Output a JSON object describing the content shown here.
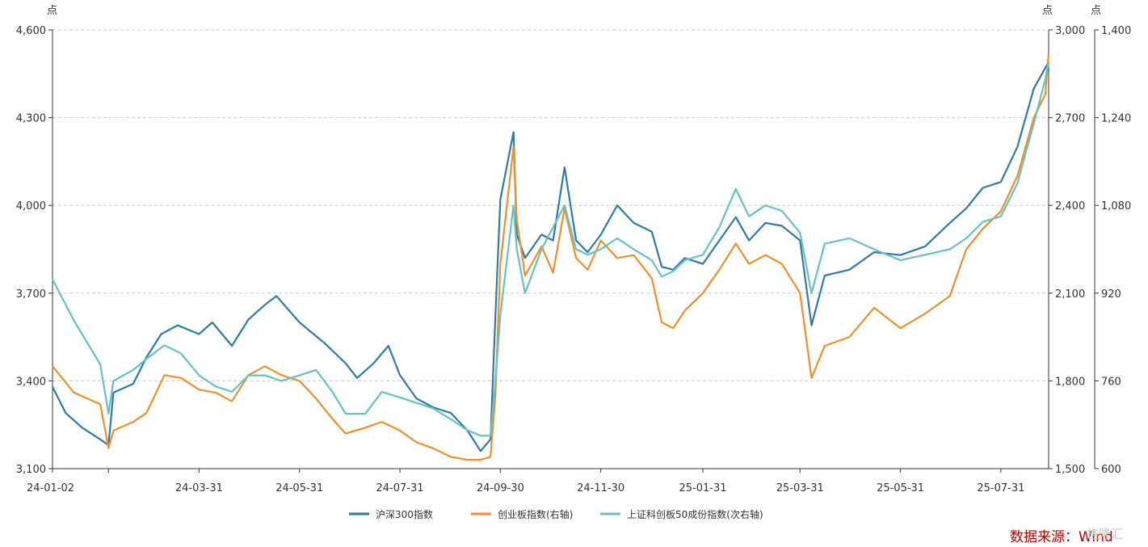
{
  "chart_data": {
    "type": "line",
    "units": {
      "left": "点",
      "right": "点",
      "right2": "点"
    },
    "x_labels": [
      "24-01-02",
      "24-03-31",
      "24-05-31",
      "24-07-31",
      "24-09-30",
      "24-11-30",
      "25-01-31",
      "25-03-31",
      "25-05-31",
      "25-07-31"
    ],
    "axes": {
      "left": {
        "min": 3100,
        "max": 4600,
        "ticks": [
          "3,100",
          "3,400",
          "3,700",
          "4,000",
          "4,300",
          "4,600"
        ]
      },
      "right": {
        "min": 1500,
        "max": 3000,
        "ticks": [
          "1,500",
          "1,800",
          "2,100",
          "2,400",
          "2,700",
          "3,000"
        ]
      },
      "right2": {
        "min": 600,
        "max": 1400,
        "ticks": [
          "600",
          "760",
          "920",
          "1,080",
          "1,240",
          "1,400"
        ]
      }
    },
    "grid": true,
    "legend_position": "bottom",
    "series": [
      {
        "name": "沪深300指数",
        "axis": "left",
        "color": "#2e7ba6",
        "points": [
          [
            "24-01-02",
            3380
          ],
          [
            "24-01-10",
            3290
          ],
          [
            "24-01-20",
            3240
          ],
          [
            "24-01-31",
            3200
          ],
          [
            "24-02-05",
            3180
          ],
          [
            "24-02-08",
            3360
          ],
          [
            "24-02-20",
            3390
          ],
          [
            "24-02-28",
            3480
          ],
          [
            "24-03-08",
            3560
          ],
          [
            "24-03-18",
            3590
          ],
          [
            "24-03-31",
            3560
          ],
          [
            "24-04-08",
            3600
          ],
          [
            "24-04-20",
            3520
          ],
          [
            "24-04-30",
            3610
          ],
          [
            "24-05-10",
            3660
          ],
          [
            "24-05-17",
            3690
          ],
          [
            "24-05-31",
            3600
          ],
          [
            "24-06-15",
            3530
          ],
          [
            "24-06-28",
            3460
          ],
          [
            "24-07-05",
            3410
          ],
          [
            "24-07-15",
            3460
          ],
          [
            "24-07-24",
            3520
          ],
          [
            "24-07-31",
            3420
          ],
          [
            "24-08-10",
            3340
          ],
          [
            "24-08-20",
            3310
          ],
          [
            "24-08-31",
            3290
          ],
          [
            "24-09-10",
            3230
          ],
          [
            "24-09-18",
            3160
          ],
          [
            "24-09-24",
            3200
          ],
          [
            "24-09-27",
            3620
          ],
          [
            "24-09-30",
            4020
          ],
          [
            "24-10-08",
            4250
          ],
          [
            "24-10-10",
            3900
          ],
          [
            "24-10-15",
            3820
          ],
          [
            "24-10-25",
            3900
          ],
          [
            "24-11-01",
            3880
          ],
          [
            "24-11-08",
            4130
          ],
          [
            "24-11-15",
            3880
          ],
          [
            "24-11-22",
            3840
          ],
          [
            "24-11-30",
            3900
          ],
          [
            "24-12-10",
            4000
          ],
          [
            "24-12-20",
            3940
          ],
          [
            "24-12-31",
            3910
          ],
          [
            "25-01-06",
            3790
          ],
          [
            "25-01-13",
            3780
          ],
          [
            "25-01-20",
            3820
          ],
          [
            "25-01-31",
            3800
          ],
          [
            "25-02-10",
            3880
          ],
          [
            "25-02-20",
            3960
          ],
          [
            "25-02-28",
            3880
          ],
          [
            "25-03-10",
            3940
          ],
          [
            "25-03-20",
            3930
          ],
          [
            "25-03-31",
            3880
          ],
          [
            "25-04-07",
            3590
          ],
          [
            "25-04-15",
            3760
          ],
          [
            "25-04-30",
            3780
          ],
          [
            "25-05-15",
            3840
          ],
          [
            "25-05-31",
            3830
          ],
          [
            "25-06-15",
            3860
          ],
          [
            "25-06-30",
            3940
          ],
          [
            "25-07-10",
            3990
          ],
          [
            "25-07-20",
            4060
          ],
          [
            "25-07-31",
            4080
          ],
          [
            "25-08-10",
            4200
          ],
          [
            "25-08-20",
            4400
          ],
          [
            "25-08-27",
            4470
          ],
          [
            "25-08-29",
            4490
          ]
        ]
      },
      {
        "name": "创业板指数(右轴)",
        "axis": "right",
        "color": "#f28e2b",
        "points": [
          [
            "24-01-02",
            1850
          ],
          [
            "24-01-15",
            1760
          ],
          [
            "24-01-31",
            1720
          ],
          [
            "24-02-05",
            1570
          ],
          [
            "24-02-08",
            1630
          ],
          [
            "24-02-20",
            1660
          ],
          [
            "24-02-28",
            1690
          ],
          [
            "24-03-10",
            1820
          ],
          [
            "24-03-20",
            1810
          ],
          [
            "24-03-31",
            1770
          ],
          [
            "24-04-10",
            1760
          ],
          [
            "24-04-20",
            1730
          ],
          [
            "24-04-30",
            1820
          ],
          [
            "24-05-10",
            1850
          ],
          [
            "24-05-20",
            1820
          ],
          [
            "24-05-31",
            1800
          ],
          [
            "24-06-10",
            1740
          ],
          [
            "24-06-20",
            1670
          ],
          [
            "24-06-28",
            1620
          ],
          [
            "24-07-10",
            1640
          ],
          [
            "24-07-20",
            1660
          ],
          [
            "24-07-31",
            1630
          ],
          [
            "24-08-10",
            1590
          ],
          [
            "24-08-20",
            1570
          ],
          [
            "24-08-31",
            1540
          ],
          [
            "24-09-10",
            1530
          ],
          [
            "24-09-18",
            1530
          ],
          [
            "24-09-24",
            1540
          ],
          [
            "24-09-27",
            1750
          ],
          [
            "24-09-30",
            2200
          ],
          [
            "24-10-08",
            2600
          ],
          [
            "24-10-10",
            2350
          ],
          [
            "24-10-15",
            2160
          ],
          [
            "24-10-25",
            2260
          ],
          [
            "24-11-01",
            2170
          ],
          [
            "24-11-08",
            2390
          ],
          [
            "24-11-15",
            2220
          ],
          [
            "24-11-22",
            2180
          ],
          [
            "24-11-30",
            2280
          ],
          [
            "24-12-10",
            2220
          ],
          [
            "24-12-20",
            2230
          ],
          [
            "24-12-31",
            2150
          ],
          [
            "25-01-06",
            2000
          ],
          [
            "25-01-13",
            1980
          ],
          [
            "25-01-20",
            2040
          ],
          [
            "25-01-31",
            2100
          ],
          [
            "25-02-10",
            2180
          ],
          [
            "25-02-20",
            2270
          ],
          [
            "25-02-28",
            2200
          ],
          [
            "25-03-10",
            2230
          ],
          [
            "25-03-20",
            2200
          ],
          [
            "25-03-31",
            2100
          ],
          [
            "25-04-07",
            1810
          ],
          [
            "25-04-15",
            1920
          ],
          [
            "25-04-30",
            1950
          ],
          [
            "25-05-15",
            2050
          ],
          [
            "25-05-31",
            1980
          ],
          [
            "25-06-15",
            2030
          ],
          [
            "25-06-30",
            2090
          ],
          [
            "25-07-10",
            2250
          ],
          [
            "25-07-20",
            2320
          ],
          [
            "25-07-31",
            2380
          ],
          [
            "25-08-10",
            2500
          ],
          [
            "25-08-20",
            2700
          ],
          [
            "25-08-27",
            2780
          ],
          [
            "25-08-29",
            2920
          ]
        ]
      },
      {
        "name": "上证科创板50成份指数(次右轴)",
        "axis": "right2",
        "color": "#65c1c4",
        "points": [
          [
            "24-01-02",
            945
          ],
          [
            "24-01-15",
            870
          ],
          [
            "24-01-31",
            790
          ],
          [
            "24-02-05",
            700
          ],
          [
            "24-02-08",
            760
          ],
          [
            "24-02-20",
            780
          ],
          [
            "24-02-28",
            800
          ],
          [
            "24-03-10",
            825
          ],
          [
            "24-03-20",
            810
          ],
          [
            "24-03-31",
            770
          ],
          [
            "24-04-10",
            750
          ],
          [
            "24-04-20",
            740
          ],
          [
            "24-04-30",
            770
          ],
          [
            "24-05-10",
            770
          ],
          [
            "24-05-20",
            760
          ],
          [
            "24-05-31",
            770
          ],
          [
            "24-06-10",
            780
          ],
          [
            "24-06-20",
            740
          ],
          [
            "24-06-28",
            700
          ],
          [
            "24-07-10",
            700
          ],
          [
            "24-07-20",
            740
          ],
          [
            "24-07-31",
            730
          ],
          [
            "24-08-10",
            720
          ],
          [
            "24-08-20",
            710
          ],
          [
            "24-08-31",
            690
          ],
          [
            "24-09-10",
            670
          ],
          [
            "24-09-18",
            660
          ],
          [
            "24-09-24",
            660
          ],
          [
            "24-09-27",
            760
          ],
          [
            "24-09-30",
            880
          ],
          [
            "24-10-08",
            1080
          ],
          [
            "24-10-10",
            1000
          ],
          [
            "24-10-15",
            920
          ],
          [
            "24-10-25",
            1000
          ],
          [
            "24-11-01",
            1040
          ],
          [
            "24-11-08",
            1080
          ],
          [
            "24-11-15",
            1000
          ],
          [
            "24-11-22",
            990
          ],
          [
            "24-11-30",
            1000
          ],
          [
            "24-12-10",
            1020
          ],
          [
            "24-12-20",
            1000
          ],
          [
            "24-12-31",
            980
          ],
          [
            "25-01-06",
            950
          ],
          [
            "25-01-13",
            960
          ],
          [
            "25-01-20",
            980
          ],
          [
            "25-01-31",
            990
          ],
          [
            "25-02-10",
            1040
          ],
          [
            "25-02-20",
            1110
          ],
          [
            "25-02-28",
            1060
          ],
          [
            "25-03-10",
            1080
          ],
          [
            "25-03-20",
            1070
          ],
          [
            "25-03-31",
            1030
          ],
          [
            "25-04-07",
            920
          ],
          [
            "25-04-15",
            1010
          ],
          [
            "25-04-30",
            1020
          ],
          [
            "25-05-15",
            1000
          ],
          [
            "25-05-31",
            980
          ],
          [
            "25-06-15",
            990
          ],
          [
            "25-06-30",
            1000
          ],
          [
            "25-07-10",
            1020
          ],
          [
            "25-07-20",
            1050
          ],
          [
            "25-07-31",
            1060
          ],
          [
            "25-08-10",
            1120
          ],
          [
            "25-08-20",
            1230
          ],
          [
            "25-08-27",
            1310
          ],
          [
            "25-08-29",
            1340
          ]
        ]
      }
    ]
  },
  "source": "数据来源：Wind",
  "watermark": "格隆汇"
}
